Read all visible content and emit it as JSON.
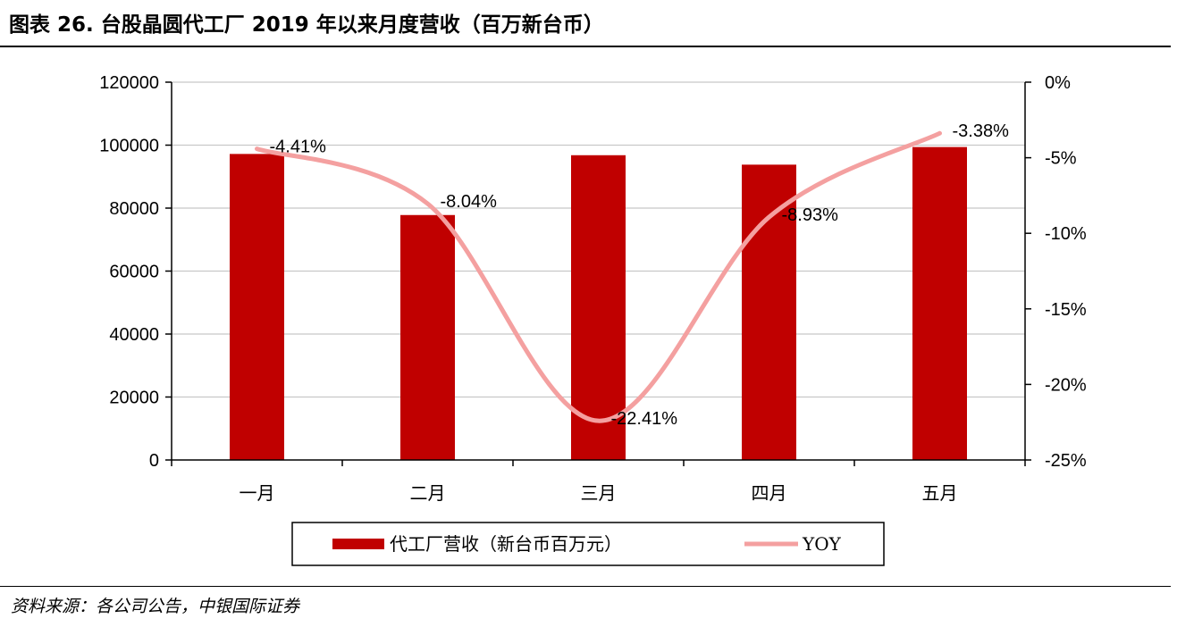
{
  "header": {
    "title": "图表 26. 台股晶圆代工厂 2019 年以来月度营收（百万新台币）"
  },
  "footer": {
    "source": "资料来源：各公司公告，中银国际证券"
  },
  "colors": {
    "bar": "#C00000",
    "line": "#F4A0A0",
    "grid": "#C8C8C8"
  },
  "chart_data": {
    "type": "bar",
    "categories": [
      "一月",
      "二月",
      "三月",
      "四月",
      "五月"
    ],
    "series": [
      {
        "name": "代工厂营收（新台币百万元）",
        "type": "bar",
        "axis": "left",
        "values": [
          97200,
          77800,
          96800,
          93800,
          99400
        ]
      },
      {
        "name": "YOY",
        "type": "line",
        "axis": "right",
        "values": [
          -4.41,
          -8.04,
          -22.41,
          -8.93,
          -3.38
        ],
        "labels": [
          "-4.41%",
          "-8.04%",
          "-22.41%",
          "-8.93%",
          "-3.38%"
        ]
      }
    ],
    "y_left": {
      "min": 0,
      "max": 120000,
      "ticks": [
        "0",
        "20000",
        "40000",
        "60000",
        "80000",
        "100000",
        "120000"
      ]
    },
    "y_right": {
      "min": -25,
      "max": 0,
      "ticks": [
        "-25%",
        "-20%",
        "-15%",
        "-10%",
        "-5%",
        "0%"
      ]
    },
    "legend": {
      "position": "bottom",
      "items": [
        "代工厂营收（新台币百万元）",
        "YOY"
      ]
    },
    "grid": true
  }
}
